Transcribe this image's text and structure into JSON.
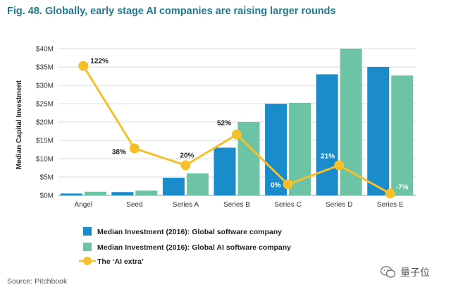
{
  "title": "Fig. 48. Globally, early stage AI companies are raising larger rounds",
  "source": "Source: Pitchbook",
  "watermark": "量子位",
  "colors": {
    "software": "#1a8ccc",
    "ai_software": "#6cc4a4",
    "ai_extra": "#f5c02a",
    "title": "#1f7a8c"
  },
  "chart_data": {
    "type": "bar",
    "title": "Fig. 48. Globally, early stage AI companies are raising larger rounds",
    "ylabel": "Median Capital Investment",
    "xlabel": "",
    "ylim": [
      0,
      40
    ],
    "yticks": [
      "$0M",
      "$5M",
      "$10M",
      "$15M",
      "$20M",
      "$25M",
      "$30M",
      "$35M",
      "$40M"
    ],
    "categories": [
      "Angel",
      "Seed",
      "Series A",
      "Series B",
      "Series C",
      "Series D",
      "Series E"
    ],
    "series": [
      {
        "name": "Median Investment (2016): Global software company",
        "values": [
          0.5,
          0.9,
          4.8,
          13.0,
          25.0,
          33.0,
          35.0
        ]
      },
      {
        "name": "Median Investment (2016): Global AI software company",
        "values": [
          1.0,
          1.3,
          6.0,
          20.0,
          25.2,
          40.0,
          32.7
        ]
      }
    ],
    "line": {
      "name": "The 'AI extra'",
      "plot_values": [
        35.3,
        12.8,
        8.2,
        16.6,
        3.0,
        8.2,
        0.5
      ],
      "labels": [
        "122%",
        "38%",
        "20%",
        "52%",
        "0%",
        "21%",
        "-7%"
      ]
    },
    "legend": [
      "Median Investment (2016): Global software company",
      "Median Investment (2016): Global AI software company",
      "The ‘AI extra’"
    ]
  }
}
